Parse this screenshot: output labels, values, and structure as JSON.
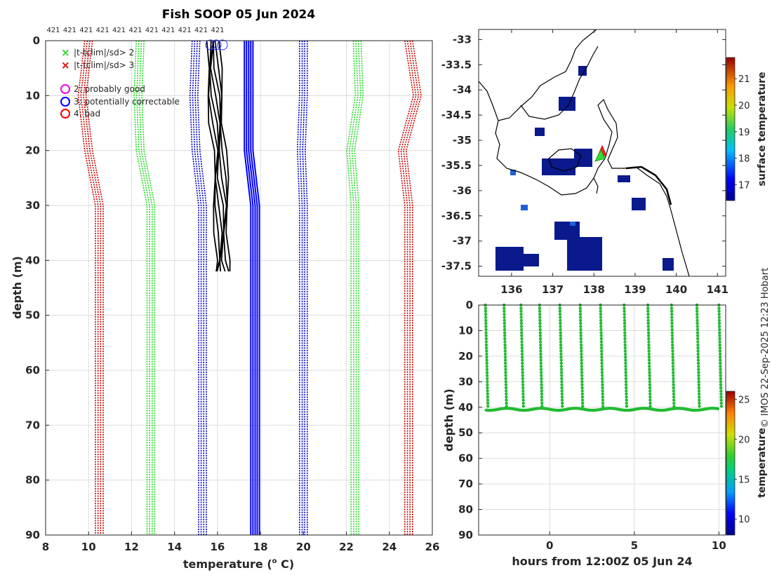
{
  "chart_data": [
    {
      "type": "line",
      "title": "Fish SOOP 05 Jun 2024",
      "xlabel": "temperature (",
      "xlabel_sup": "o",
      "xlabel_tail": " C)",
      "ylabel": "depth (m)",
      "xlim": [
        8,
        26
      ],
      "ylim": [
        90,
        0
      ],
      "x_ticks": [
        "8",
        "10",
        "12",
        "14",
        "16",
        "18",
        "20",
        "22",
        "24",
        "26"
      ],
      "y_ticks": [
        "0",
        "10",
        "20",
        "30",
        "40",
        "50",
        "60",
        "70",
        "80",
        "90"
      ],
      "top_labels": [
        "421",
        "421",
        "421",
        "421",
        "421",
        "421",
        "421",
        "421",
        "421",
        "421",
        "421"
      ],
      "legend": {
        "x_green": "|t-tclim|/sd> 2",
        "x_red": "|t-tclim|/sd> 3",
        "flag2": "2: probably good",
        "flag3": "3: potentially correctable",
        "flag4": "4: bad"
      },
      "series": [
        {
          "name": "clim_minus_3sd",
          "color": "#cc0000",
          "depth": [
            0,
            10,
            20,
            30,
            90
          ],
          "temp": [
            10.0,
            9.7,
            10.0,
            10.5,
            10.5
          ]
        },
        {
          "name": "clim_minus_2sd",
          "color": "#22dd22",
          "depth": [
            0,
            10,
            20,
            30,
            90
          ],
          "temp": [
            12.4,
            12.3,
            12.4,
            12.9,
            12.9
          ]
        },
        {
          "name": "clim_minus_1sd",
          "color": "#0000cc",
          "depth": [
            0,
            10,
            20,
            30,
            90
          ],
          "temp": [
            15.0,
            14.9,
            15.0,
            15.3,
            15.3
          ]
        },
        {
          "name": "climatology",
          "color": "#0000ff",
          "depth": [
            0,
            10,
            20,
            30,
            90
          ],
          "temp": [
            17.4,
            17.4,
            17.4,
            17.7,
            17.7
          ]
        },
        {
          "name": "clim_plus_1sd",
          "color": "#0000cc",
          "depth": [
            0,
            10,
            20,
            30,
            90
          ],
          "temp": [
            20.0,
            20.0,
            19.9,
            20.0,
            20.0
          ]
        },
        {
          "name": "clim_plus_2sd",
          "color": "#22dd22",
          "depth": [
            0,
            10,
            20,
            30,
            90
          ],
          "temp": [
            22.5,
            22.6,
            22.2,
            22.4,
            22.4
          ]
        },
        {
          "name": "clim_plus_3sd",
          "color": "#cc0000",
          "depth": [
            0,
            10,
            20,
            30,
            90
          ],
          "temp": [
            24.9,
            25.3,
            24.6,
            24.9,
            24.9
          ]
        },
        {
          "name": "observed_profiles",
          "color": "#000000",
          "depth": [
            0,
            5,
            10,
            15,
            20,
            25,
            30,
            35,
            40,
            42
          ],
          "temp": [
            15.9,
            15.9,
            16.0,
            16.1,
            16.2,
            16.2,
            16.3,
            16.3,
            16.3,
            16.3
          ]
        }
      ]
    },
    {
      "type": "heatmap",
      "title": "",
      "x_ticks": [
        "136",
        "137",
        "138",
        "139",
        "140",
        "141"
      ],
      "y_ticks": [
        "-33",
        "-33.5",
        "-34",
        "-34.5",
        "-35",
        "-35.5",
        "-36",
        "-36.5",
        "-37",
        "-37.5"
      ],
      "xlim": [
        135.2,
        141.2
      ],
      "ylim": [
        -37.7,
        -32.8
      ],
      "markers": [
        {
          "lon": 138.1,
          "lat": -35.2,
          "colors": [
            "#ff0000",
            "#00cc00"
          ]
        }
      ],
      "colorbar": {
        "label": "surface temperature",
        "ticks": [
          "17",
          "18",
          "19",
          "20",
          "21"
        ],
        "range": [
          16.4,
          21.8
        ]
      }
    },
    {
      "type": "scatter",
      "title": "",
      "xlabel": "hours from 12:00Z 05 Jun 24",
      "ylabel": "depth (m)",
      "xlim": [
        -4.2,
        10.4
      ],
      "ylim": [
        90,
        0
      ],
      "x_ticks": [
        "0",
        "5",
        "10"
      ],
      "y_ticks": [
        "0",
        "10",
        "20",
        "30",
        "40",
        "50",
        "60",
        "70",
        "80",
        "90"
      ],
      "cast_hours": [
        -3.8,
        -2.7,
        -1.7,
        -0.6,
        0.6,
        1.8,
        3.0,
        4.4,
        5.8,
        7.2,
        8.7,
        10.0
      ],
      "bottom_depth": 40.5,
      "point_color": "#22bb33",
      "colorbar": {
        "label": "temperature",
        "ticks": [
          "10",
          "15",
          "20",
          "25"
        ],
        "range": [
          8,
          26
        ]
      }
    }
  ],
  "side_text": "© IMOS 22-Sep-2025 12:23 Hobart"
}
